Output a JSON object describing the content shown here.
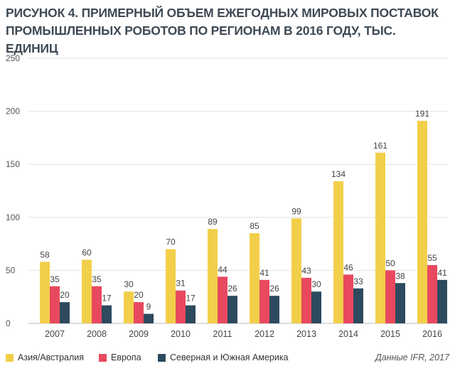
{
  "chart_data": {
    "type": "bar",
    "title": "РИСУНОК 4. ПРИМЕРНЫЙ ОБЪЕМ ЕЖЕГОДНЫХ МИРОВЫХ ПОСТАВОК ПРОМЫШЛЕННЫХ РОБОТОВ ПО РЕГИОНАМ В 2016 ГОДУ, ТЫС. ЕДИНИЦ",
    "xlabel": "",
    "ylabel": "",
    "ylim": [
      0,
      250
    ],
    "yticks": [
      "0",
      "50",
      "100",
      "150",
      "200",
      "250"
    ],
    "grid": true,
    "categories": [
      "2007",
      "2008",
      "2009",
      "2010",
      "2011",
      "2012",
      "2013",
      "2014",
      "2015",
      "2016"
    ],
    "series": [
      {
        "name": "Азия/Австралия",
        "color": "#f2cf4a",
        "values": [
          58,
          60,
          30,
          70,
          89,
          85,
          99,
          134,
          161,
          191
        ]
      },
      {
        "name": "Европа",
        "color": "#e8495e",
        "values": [
          35,
          35,
          20,
          31,
          44,
          41,
          43,
          46,
          50,
          55
        ]
      },
      {
        "name": "Северная и Южная Америка",
        "color": "#2d4a5e",
        "values": [
          20,
          17,
          9,
          17,
          26,
          26,
          30,
          33,
          38,
          41
        ]
      }
    ],
    "legend_position": "bottom-left",
    "source": "Данные IFR, 2017"
  }
}
